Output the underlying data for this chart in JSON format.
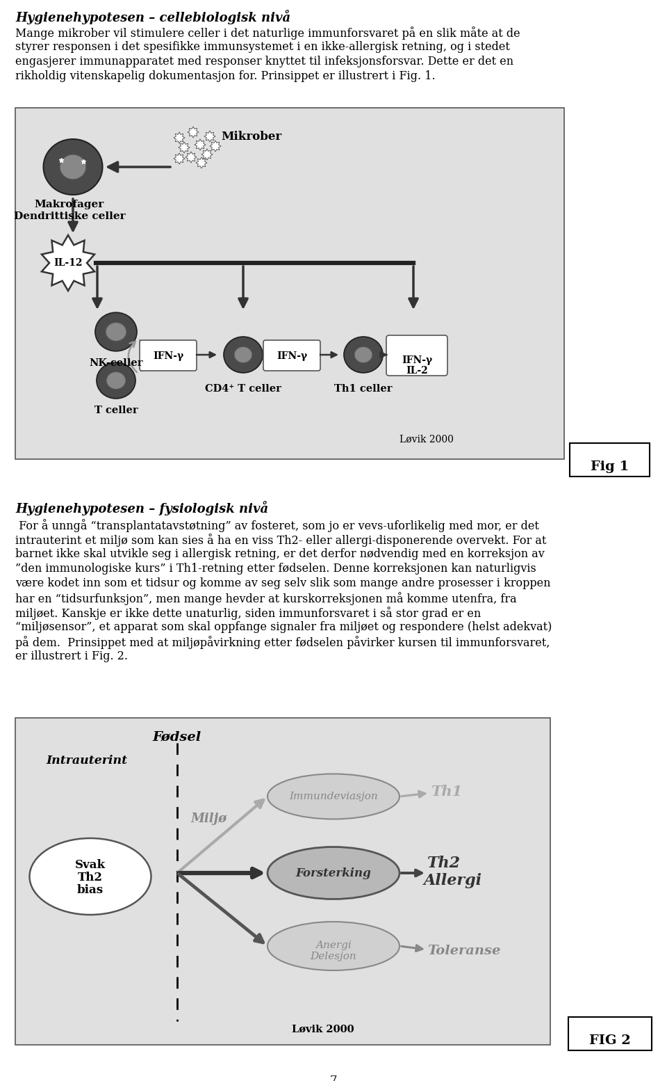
{
  "title1": "Hygienehypotesen – cellebiologisk nivå",
  "para1": "Mange mikrober vil stimulere celler i det naturlige immunforsvaret på en slik måte at de\nstyrer responsen i det spesifikke immunsystemet i en ikke-allergisk retning, og i stedet\nengasjerer immunapparatet med responser knyttet til infeksjonsforsvar. Dette er det en\nrikholdig vitenskapelig dokumentasjon for. Prinsippet er illustrert i Fig. 1.",
  "title2": "Hygienehypotesen – fysiologisk nivå",
  "para2": " For å unngå “transplantatavstøtning” av fosteret, som jo er vevs-uforlikelig med mor, er det\nintrauterint et miljø som kan sies å ha en viss Th2- eller allergi-disponerende overvekt. For at\nbarnet ikke skal utvikle seg i allergisk retning, er det derfor nødvendig med en korreksjon av\n”den immunologiske kurs” i Th1-retning etter fødselen. Denne korreksjonen kan naturligvis\nvære kodet inn som et tidsur og komme av seg selv slik som mange andre prosesser i kroppen\nhar en “tidsurfunksjon”, men mange hevder at kurskorreksjonen må komme utenfra, fra\nmiljøet. Kanskje er ikke dette unaturlig, siden immunforsvaret i så stor grad er en\n“miljøsensor”, et apparat som skal oppfange signaler fra miljøet og respondere (helst adekvat)\npå dem.  Prinsippet med at miljøpåvirkning etter fødselen påvirker kursen til immunforsvaret,\ner illustrert i Fig. 2.",
  "page_number": "7",
  "fig1_label": "Fig 1",
  "fig2_label": "FIG 2",
  "lovik2000": "Løvik 2000"
}
